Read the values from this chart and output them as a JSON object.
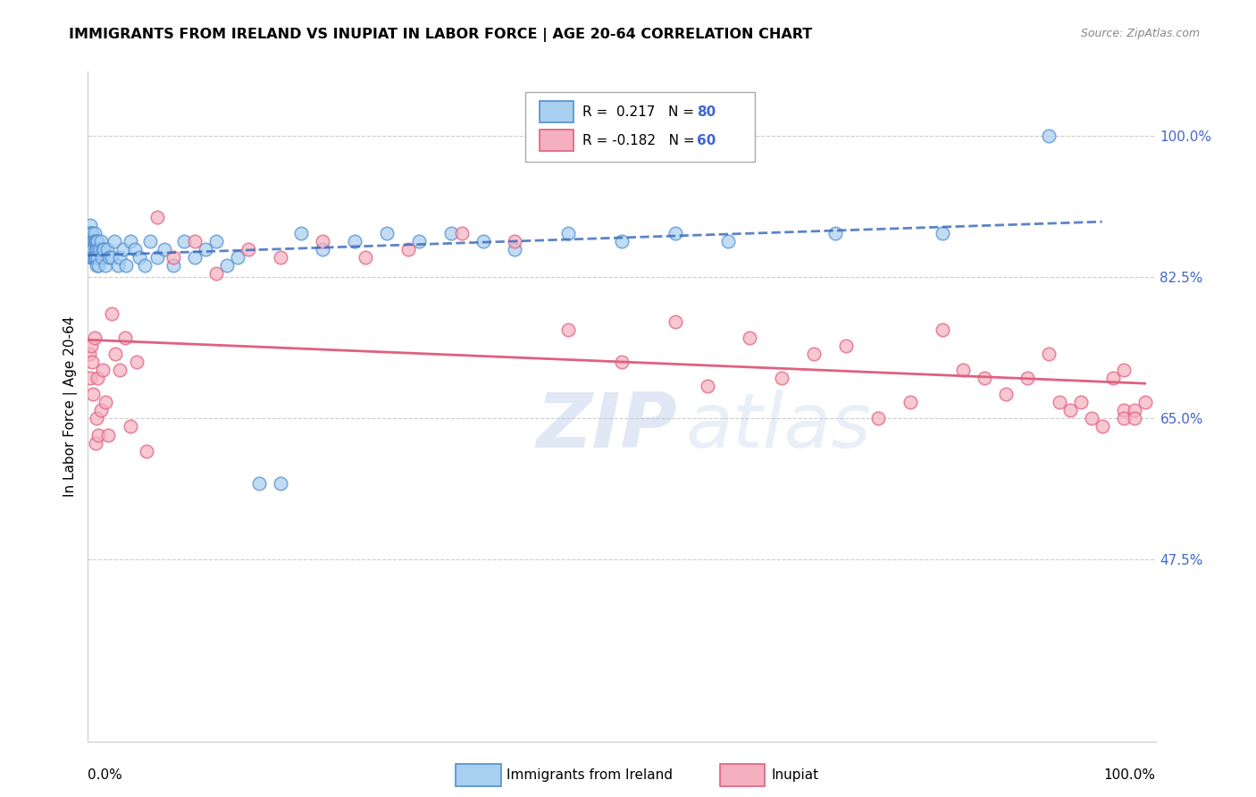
{
  "title": "IMMIGRANTS FROM IRELAND VS INUPIAT IN LABOR FORCE | AGE 20-64 CORRELATION CHART",
  "source": "Source: ZipAtlas.com",
  "ylabel": "In Labor Force | Age 20-64",
  "ytick_labels": [
    "100.0%",
    "82.5%",
    "65.0%",
    "47.5%"
  ],
  "ytick_values": [
    1.0,
    0.825,
    0.65,
    0.475
  ],
  "xlim": [
    0.0,
    1.0
  ],
  "ylim": [
    0.25,
    1.08
  ],
  "legend_ireland": "Immigrants from Ireland",
  "legend_inupiat": "Inupiat",
  "R_ireland": 0.217,
  "N_ireland": 80,
  "R_inupiat": -0.182,
  "N_inupiat": 60,
  "color_ireland_fill": "#A8CEF0",
  "color_ireland_edge": "#5090D0",
  "color_inupiat_fill": "#F5B0C0",
  "color_inupiat_edge": "#E06080",
  "color_ireland_line": "#3366BB",
  "color_inupiat_line": "#E06080",
  "color_right_axis": "#4466CC",
  "background": "#FFFFFF",
  "grid_color": "#CCCCCC",
  "ireland_x": [
    0.001,
    0.001,
    0.001,
    0.001,
    0.002,
    0.002,
    0.002,
    0.002,
    0.002,
    0.003,
    0.003,
    0.003,
    0.003,
    0.003,
    0.004,
    0.004,
    0.004,
    0.004,
    0.005,
    0.005,
    0.005,
    0.005,
    0.006,
    0.006,
    0.006,
    0.007,
    0.007,
    0.007,
    0.008,
    0.008,
    0.008,
    0.009,
    0.009,
    0.01,
    0.01,
    0.011,
    0.012,
    0.013,
    0.014,
    0.015,
    0.016,
    0.018,
    0.02,
    0.022,
    0.025,
    0.028,
    0.03,
    0.033,
    0.036,
    0.04,
    0.044,
    0.048,
    0.053,
    0.058,
    0.065,
    0.072,
    0.08,
    0.09,
    0.1,
    0.11,
    0.12,
    0.13,
    0.14,
    0.16,
    0.18,
    0.2,
    0.22,
    0.25,
    0.28,
    0.31,
    0.34,
    0.37,
    0.4,
    0.45,
    0.5,
    0.55,
    0.6,
    0.7,
    0.8,
    0.9
  ],
  "ireland_y": [
    0.88,
    0.87,
    0.87,
    0.86,
    0.89,
    0.88,
    0.87,
    0.87,
    0.86,
    0.88,
    0.87,
    0.87,
    0.86,
    0.85,
    0.88,
    0.87,
    0.86,
    0.85,
    0.87,
    0.87,
    0.86,
    0.85,
    0.88,
    0.87,
    0.85,
    0.87,
    0.86,
    0.85,
    0.87,
    0.86,
    0.84,
    0.87,
    0.85,
    0.86,
    0.84,
    0.86,
    0.87,
    0.85,
    0.86,
    0.86,
    0.84,
    0.86,
    0.85,
    0.85,
    0.87,
    0.84,
    0.85,
    0.86,
    0.84,
    0.87,
    0.86,
    0.85,
    0.84,
    0.87,
    0.85,
    0.86,
    0.84,
    0.87,
    0.85,
    0.86,
    0.87,
    0.84,
    0.85,
    0.57,
    0.57,
    0.88,
    0.86,
    0.87,
    0.88,
    0.87,
    0.88,
    0.87,
    0.86,
    0.88,
    0.87,
    0.88,
    0.87,
    0.88,
    0.88,
    1.0
  ],
  "inupiat_x": [
    0.001,
    0.002,
    0.003,
    0.004,
    0.005,
    0.006,
    0.007,
    0.008,
    0.009,
    0.01,
    0.012,
    0.014,
    0.016,
    0.019,
    0.022,
    0.026,
    0.03,
    0.035,
    0.04,
    0.046,
    0.055,
    0.065,
    0.08,
    0.1,
    0.12,
    0.15,
    0.18,
    0.22,
    0.26,
    0.3,
    0.35,
    0.4,
    0.45,
    0.5,
    0.55,
    0.58,
    0.62,
    0.65,
    0.68,
    0.71,
    0.74,
    0.77,
    0.8,
    0.82,
    0.84,
    0.86,
    0.88,
    0.9,
    0.91,
    0.92,
    0.93,
    0.94,
    0.95,
    0.96,
    0.97,
    0.97,
    0.97,
    0.98,
    0.98,
    0.99
  ],
  "inupiat_y": [
    0.73,
    0.7,
    0.74,
    0.72,
    0.68,
    0.75,
    0.62,
    0.65,
    0.7,
    0.63,
    0.66,
    0.71,
    0.67,
    0.63,
    0.78,
    0.73,
    0.71,
    0.75,
    0.64,
    0.72,
    0.61,
    0.9,
    0.85,
    0.87,
    0.83,
    0.86,
    0.85,
    0.87,
    0.85,
    0.86,
    0.88,
    0.87,
    0.76,
    0.72,
    0.77,
    0.69,
    0.75,
    0.7,
    0.73,
    0.74,
    0.65,
    0.67,
    0.76,
    0.71,
    0.7,
    0.68,
    0.7,
    0.73,
    0.67,
    0.66,
    0.67,
    0.65,
    0.64,
    0.7,
    0.66,
    0.65,
    0.71,
    0.66,
    0.65,
    0.67
  ]
}
